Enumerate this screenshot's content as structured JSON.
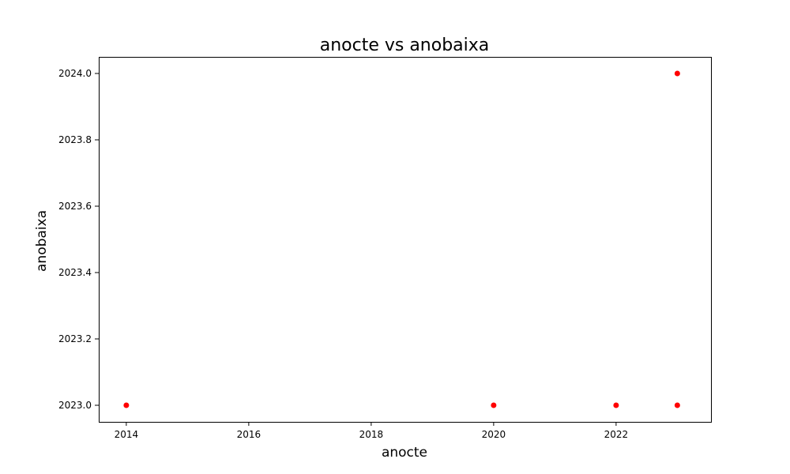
{
  "chart_data": {
    "type": "scatter",
    "title": "anocte vs anobaixa",
    "xlabel": "anocte",
    "ylabel": "anobaixa",
    "xlim": [
      2013.55,
      2023.55
    ],
    "ylim": [
      2022.95,
      2024.05
    ],
    "x_ticks": [
      2014,
      2016,
      2018,
      2020,
      2022
    ],
    "x_tick_labels": [
      "2014",
      "2016",
      "2018",
      "2020",
      "2022"
    ],
    "y_ticks": [
      2023.0,
      2023.2,
      2023.4,
      2023.6,
      2023.8,
      2024.0
    ],
    "y_tick_labels": [
      "2023.0",
      "2023.2",
      "2023.4",
      "2023.6",
      "2023.8",
      "2024.0"
    ],
    "grid": false,
    "marker_color": "#ff0000",
    "points": [
      {
        "x": 2014,
        "y": 2023
      },
      {
        "x": 2020,
        "y": 2023
      },
      {
        "x": 2022,
        "y": 2023
      },
      {
        "x": 2023,
        "y": 2023
      },
      {
        "x": 2023,
        "y": 2024
      }
    ]
  }
}
